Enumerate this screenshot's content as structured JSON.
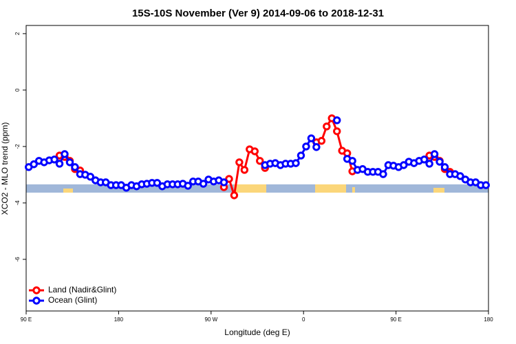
{
  "chart_data": {
    "type": "line",
    "title": "15S-10S November (Ver 9)   2014-09-06 to 2018-12-31",
    "xlabel": "Longitude (deg E)",
    "ylabel": "XCO2 - MLO trend (ppm)",
    "x": [
      92.5,
      97.5,
      102.5,
      107.5,
      112.5,
      117.5,
      122.5,
      127.5,
      132.5,
      137.5,
      142.5,
      147.5,
      152.5,
      157.5,
      162.5,
      167.5,
      172.5,
      177.5,
      182.5,
      187.5,
      192.5,
      197.5,
      202.5,
      207.5,
      212.5,
      217.5,
      222.5,
      227.5,
      232.5,
      237.5,
      242.5,
      247.5,
      252.5,
      257.5,
      262.5,
      267.5,
      272.5,
      277.5,
      282.5,
      287.5,
      292.5,
      297.5,
      302.5,
      307.5,
      312.5,
      317.5,
      322.5,
      327.5,
      332.5,
      337.5,
      342.5,
      347.5,
      352.5,
      357.5,
      362.5,
      367.5,
      372.5,
      377.5,
      382.5,
      387.5,
      392.5,
      397.5,
      402.5,
      407.5,
      412.5,
      417.5,
      422.5,
      427.5,
      432.5,
      437.5,
      442.5,
      447.5,
      452.5,
      457.5,
      462.5,
      467.5,
      472.5,
      477.5,
      482.5,
      487.5,
      492.5,
      497.5,
      502.5,
      507.5,
      512.5,
      517.5,
      522.5,
      527.5,
      532.5,
      537.5
    ],
    "series": [
      {
        "name": "Land (Nadir&Glint)",
        "color": "#ff0000",
        "values": [
          null,
          null,
          null,
          null,
          null,
          null,
          -2.32,
          -2.37,
          -2.51,
          -2.8,
          -2.85,
          null,
          null,
          null,
          null,
          null,
          null,
          null,
          null,
          null,
          null,
          null,
          null,
          null,
          null,
          null,
          null,
          null,
          null,
          null,
          null,
          null,
          null,
          null,
          null,
          null,
          null,
          null,
          -3.44,
          -3.15,
          -3.73,
          -2.56,
          -2.83,
          -2.1,
          -2.17,
          -2.51,
          -2.76,
          null,
          null,
          null,
          null,
          null,
          null,
          null,
          null,
          null,
          -1.85,
          -1.8,
          -1.29,
          -1.0,
          -1.46,
          -2.15,
          -2.24,
          -2.88,
          null,
          null,
          null,
          null,
          null,
          null,
          null,
          null,
          null,
          null,
          null,
          null,
          null,
          null,
          -2.32,
          -2.37,
          -2.51,
          -2.8,
          -2.9,
          null,
          null,
          null,
          null,
          null,
          null,
          null
        ]
      },
      {
        "name": "Ocean (Glint)",
        "color": "#0000ff",
        "values": [
          -2.73,
          -2.63,
          -2.51,
          -2.56,
          -2.49,
          -2.46,
          -2.61,
          -2.27,
          -2.56,
          -2.73,
          -2.98,
          -3.0,
          -3.07,
          -3.2,
          -3.27,
          -3.27,
          -3.37,
          -3.37,
          -3.37,
          -3.46,
          -3.37,
          -3.41,
          -3.34,
          -3.32,
          -3.29,
          -3.29,
          -3.41,
          -3.34,
          -3.34,
          -3.34,
          -3.32,
          -3.39,
          -3.24,
          -3.24,
          -3.32,
          -3.17,
          -3.24,
          -3.2,
          -3.27,
          null,
          null,
          null,
          null,
          null,
          null,
          null,
          -2.66,
          -2.61,
          -2.59,
          -2.66,
          -2.61,
          -2.61,
          -2.59,
          -2.32,
          -2.0,
          -1.71,
          -2.02,
          null,
          null,
          null,
          -1.07,
          null,
          -2.44,
          -2.51,
          -2.83,
          -2.8,
          -2.9,
          -2.9,
          -2.9,
          -2.98,
          -2.66,
          -2.68,
          -2.73,
          -2.66,
          -2.54,
          -2.59,
          -2.51,
          -2.46,
          -2.61,
          -2.27,
          -2.54,
          -2.73,
          -2.98,
          -2.98,
          -3.05,
          -3.17,
          -3.27,
          -3.27,
          -3.37,
          -3.37
        ]
      }
    ],
    "xlim": [
      90,
      540
    ],
    "xticks": [
      {
        "value": 90,
        "label": "90 E"
      },
      180,
      {
        "value": 270,
        "label": "90 W"
      },
      {
        "value": 360,
        "label": "0"
      },
      {
        "value": 450,
        "label": "90 E"
      },
      {
        "value": 540,
        "label": "180"
      }
    ],
    "ylim": [
      -7.83,
      2.29
    ],
    "yticks": [
      -6,
      -4,
      -2,
      0,
      2
    ],
    "legend": "bottomleft"
  }
}
